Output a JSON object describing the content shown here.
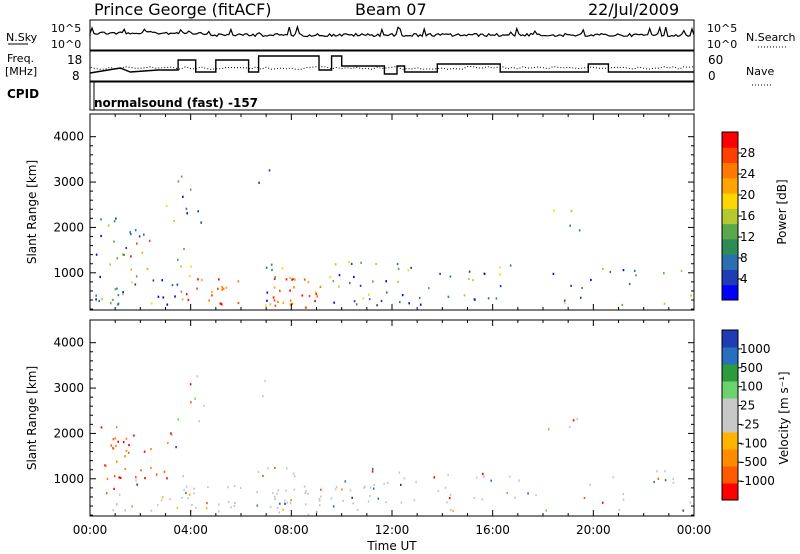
{
  "header": {
    "station": "Prince George (fitACF)",
    "beam": "Beam 07",
    "date": "22/Jul/2009"
  },
  "panels": {
    "nsky_label": "N.Sky",
    "nsearch_label": "N.Search",
    "freq_label_1": "Freq.",
    "freq_label_2": "[MHz]",
    "nave_label": "Nave",
    "cpid_label": "CPID",
    "program": "normalsound (fast) -157",
    "left_ticks_top": [
      "10^5",
      "10^0"
    ],
    "right_ticks_top": [
      "10^5",
      "10^0"
    ],
    "freq_ticks": [
      "18",
      "8"
    ],
    "nave_ticks": [
      "60",
      "0"
    ]
  },
  "chart_data": [
    {
      "type": "heatmap",
      "title": "",
      "xlabel": "Time UT",
      "ylabel": "Slant Range [km]",
      "x_ticks": [
        "00:00",
        "04:00",
        "08:00",
        "12:00",
        "16:00",
        "20:00",
        "00:00"
      ],
      "y_ticks": [
        "1000",
        "2000",
        "3000",
        "4000"
      ],
      "xlim_hours": [
        0,
        24
      ],
      "ylim_km": [
        180,
        4500
      ],
      "colorbar": {
        "label": "Power [dB]",
        "ticks": [
          "4",
          "8",
          "12",
          "16",
          "20",
          "24",
          "28"
        ],
        "range": [
          0,
          30
        ],
        "colors": [
          "#0000ff",
          "#1e3cb4",
          "#2b6fb0",
          "#2e8b57",
          "#5aa84a",
          "#b4c832",
          "#ffd700",
          "#ffa500",
          "#ff7800",
          "#ff4000",
          "#ff0000"
        ]
      }
    },
    {
      "type": "heatmap",
      "title": "",
      "xlabel": "Time UT",
      "ylabel": "Slant Range [km]",
      "x_ticks": [
        "00:00",
        "04:00",
        "08:00",
        "12:00",
        "16:00",
        "20:00",
        "00:00"
      ],
      "y_ticks": [
        "1000",
        "2000",
        "3000",
        "4000"
      ],
      "xlim_hours": [
        0,
        24
      ],
      "ylim_km": [
        180,
        4500
      ],
      "colorbar": {
        "label": "Velocity [m s⁻¹]",
        "ticks": [
          "1000",
          "500",
          "100",
          "25",
          "-25",
          "-100",
          "-500",
          "-1000"
        ],
        "range": [
          -1000,
          1000
        ],
        "colors": [
          "#ff0000",
          "#ff5a00",
          "#ff8c00",
          "#ffb400",
          "#c8c8c8",
          "#c8c8c8",
          "#6dd26d",
          "#2e9a3c",
          "#2a6fbf",
          "#1e3cb4"
        ]
      }
    }
  ]
}
